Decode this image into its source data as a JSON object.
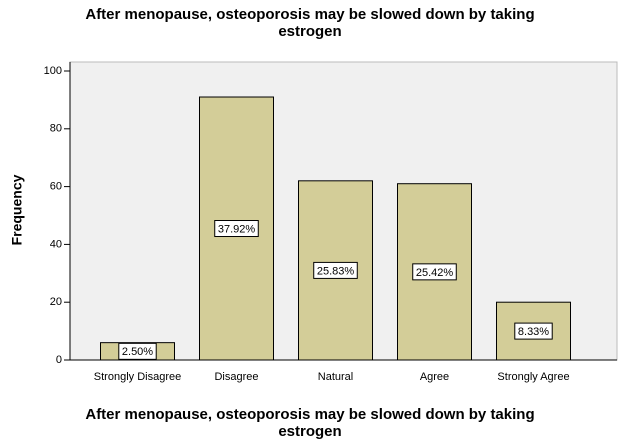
{
  "chart_data": {
    "type": "bar",
    "title": "After menopause, osteoporosis may be slowed down by taking estrogen",
    "x_label": "After menopause, osteoporosis may be slowed down by taking estrogen",
    "y_label": "Frequency",
    "categories": [
      "Strongly Disagree",
      "Disagree",
      "Natural",
      "Agree",
      "Strongly Agree"
    ],
    "values": [
      6,
      91,
      62,
      61,
      20
    ],
    "percentage_labels": [
      "2.50%",
      "37.92%",
      "25.83%",
      "25.42%",
      "8.33%"
    ],
    "color": "#d3cd98",
    "ylim": [
      0,
      100
    ],
    "yticks": [
      0,
      20,
      40,
      60,
      80,
      100
    ],
    "grid": false
  }
}
